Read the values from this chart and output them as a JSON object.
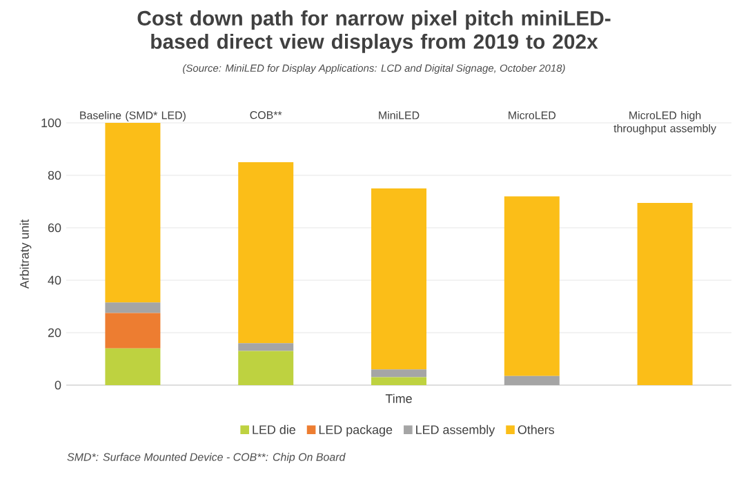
{
  "chart_data": {
    "type": "bar",
    "stacked": true,
    "title": "Cost down path for narrow pixel pitch miniLED-based direct view displays from 2019 to 202x",
    "subtitle": "(Source: MiniLED for Display Applications: LCD and Digital Signage, October 2018)",
    "xlabel": "Time",
    "ylabel": "Arbitraty unit",
    "categories": [
      "Baseline (SMD* LED)",
      "COB**",
      "MiniLED",
      "MicroLED",
      "MicroLED high throughput assembly"
    ],
    "series": [
      {
        "name": "LED die",
        "color": "#bed240",
        "values": [
          14,
          13,
          3,
          0,
          0
        ]
      },
      {
        "name": "LED package",
        "color": "#ed7d31",
        "values": [
          13.5,
          0,
          0,
          0,
          0
        ]
      },
      {
        "name": "LED assembly",
        "color": "#a5a5a5",
        "values": [
          4,
          3,
          3,
          3.5,
          0
        ]
      },
      {
        "name": "Others",
        "color": "#fbbe18",
        "values": [
          68.5,
          69,
          69,
          68.5,
          69.5
        ]
      }
    ],
    "ylim": [
      0,
      100
    ],
    "yticks": [
      0,
      20,
      40,
      60,
      80,
      100
    ],
    "grid": "y",
    "legend": "bottom",
    "annotations": [
      "SMD*: Surface Mounted Device - COB**: Chip On Board"
    ]
  }
}
